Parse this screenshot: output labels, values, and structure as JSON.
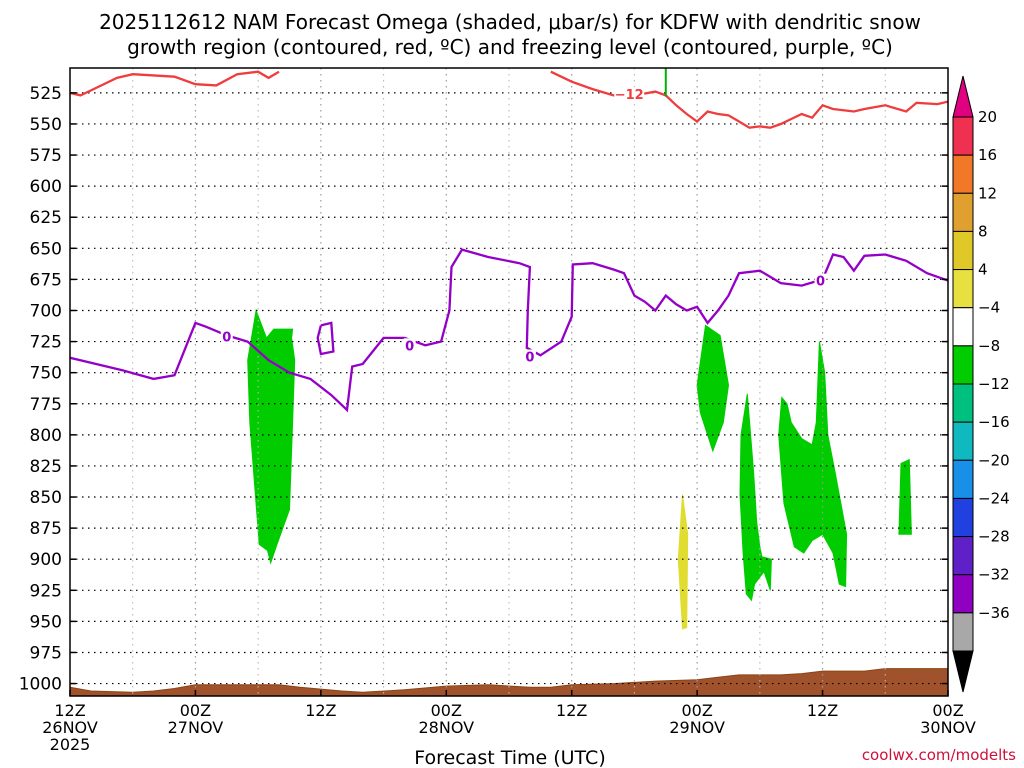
{
  "chart_data": {
    "type": "time-height cross section",
    "title_line1": "2025112612 NAM Forecast Omega (shaded, μbar/s) for KDFW with dendritic snow",
    "title_line2": "growth region (contoured, red, ºC) and freezing level (contoured, purple, ºC)",
    "xlabel": "Forecast Time (UTC)",
    "ylabel": "",
    "credit": "coolwx.com/modelts",
    "ylim": [
      1010,
      505
    ],
    "xlim": [
      0,
      84
    ],
    "y_ticks": [
      525,
      550,
      575,
      600,
      625,
      650,
      675,
      700,
      725,
      750,
      775,
      800,
      825,
      850,
      875,
      900,
      925,
      950,
      975,
      1000
    ],
    "x_ticks": [
      {
        "hour": 0,
        "line1": "12Z",
        "line2": "26NOV",
        "line3": "2025"
      },
      {
        "hour": 12,
        "line1": "00Z",
        "line2": "27NOV",
        "line3": ""
      },
      {
        "hour": 24,
        "line1": "12Z",
        "line2": "",
        "line3": ""
      },
      {
        "hour": 36,
        "line1": "00Z",
        "line2": "28NOV",
        "line3": ""
      },
      {
        "hour": 48,
        "line1": "12Z",
        "line2": "",
        "line3": ""
      },
      {
        "hour": 60,
        "line1": "00Z",
        "line2": "29NOV",
        "line3": ""
      },
      {
        "hour": 72,
        "line1": "12Z",
        "line2": "",
        "line3": ""
      },
      {
        "hour": 84,
        "line1": "00Z",
        "line2": "30NOV",
        "line3": ""
      }
    ],
    "grid": true,
    "colorbar": {
      "labels": [
        "20",
        "16",
        "12",
        "8",
        "4",
        "−4",
        "−8",
        "−12",
        "−16",
        "−20",
        "−24",
        "−28",
        "−32",
        "−36"
      ],
      "colors": [
        "#f03050",
        "#f07828",
        "#e0a030",
        "#e0c828",
        "#e8e040",
        "#ffffff",
        "#00cc00",
        "#00c080",
        "#10b8c0",
        "#1890e8",
        "#2040e0",
        "#6020c8",
        "#9000c0",
        "#a8a8a8"
      ],
      "top_arrow_color": "#e00080",
      "bottom_arrow_color": "#000000"
    },
    "contour_labels": {
      "dgz": "−12",
      "freezing": "0"
    },
    "freezing_level_0C": [
      [
        0,
        738
      ],
      [
        2,
        742
      ],
      [
        5,
        748
      ],
      [
        8,
        755
      ],
      [
        10,
        752
      ],
      [
        12,
        710
      ],
      [
        13,
        713
      ],
      [
        15,
        720
      ],
      [
        17,
        725
      ],
      [
        19,
        740
      ],
      [
        21,
        750
      ],
      [
        23,
        755
      ],
      [
        25,
        768
      ],
      [
        26.5,
        780
      ],
      [
        27,
        745
      ],
      [
        28,
        743
      ],
      [
        30,
        722
      ],
      [
        32,
        722
      ],
      [
        34,
        728
      ],
      [
        35.5,
        725
      ],
      [
        36.3,
        700
      ],
      [
        36.5,
        665
      ],
      [
        37.5,
        651
      ],
      [
        40,
        657
      ],
      [
        43,
        662
      ],
      [
        44,
        665
      ],
      [
        43.8,
        700
      ],
      [
        43.7,
        730
      ],
      [
        45,
        736
      ],
      [
        47,
        725
      ],
      [
        48,
        705
      ],
      [
        48.1,
        663
      ],
      [
        50,
        662
      ],
      [
        52,
        667
      ],
      [
        53,
        670
      ],
      [
        54,
        688
      ],
      [
        55,
        693
      ],
      [
        56,
        700
      ],
      [
        57,
        688
      ],
      [
        58,
        695
      ],
      [
        59,
        700
      ],
      [
        60,
        697
      ],
      [
        61,
        710
      ],
      [
        62,
        700
      ],
      [
        63,
        688
      ],
      [
        64,
        670
      ],
      [
        66,
        668
      ],
      [
        68,
        678
      ],
      [
        70,
        680
      ],
      [
        72,
        675
      ],
      [
        73,
        655
      ],
      [
        74,
        657
      ],
      [
        75,
        668
      ],
      [
        76,
        656
      ],
      [
        78,
        655
      ],
      [
        80,
        660
      ],
      [
        82,
        670
      ],
      [
        84,
        676
      ]
    ],
    "freezing_small_loop": [
      [
        24,
        712
      ],
      [
        25,
        710
      ],
      [
        25.2,
        733
      ],
      [
        24,
        735
      ],
      [
        23.7,
        722
      ],
      [
        24,
        712
      ]
    ],
    "dgz_minus12C": [
      [
        0,
        525
      ],
      [
        1,
        527
      ],
      [
        3,
        519
      ],
      [
        4.5,
        513
      ],
      [
        6,
        510
      ],
      [
        10,
        512
      ],
      [
        12,
        518
      ],
      [
        14,
        519
      ],
      [
        16,
        510
      ],
      [
        18,
        508
      ],
      [
        19,
        513
      ],
      [
        20,
        508
      ]
    ],
    "dgz_minus12C_right": [
      [
        46,
        508
      ],
      [
        48,
        516
      ],
      [
        50,
        522
      ],
      [
        52,
        527
      ],
      [
        54,
        527
      ],
      [
        56,
        524
      ],
      [
        57,
        527
      ],
      [
        58,
        535
      ],
      [
        59,
        542
      ],
      [
        60,
        548
      ],
      [
        61,
        540
      ],
      [
        62,
        542
      ],
      [
        63,
        543
      ],
      [
        64,
        548
      ],
      [
        65,
        553
      ],
      [
        66,
        552
      ],
      [
        67,
        553
      ],
      [
        68,
        550
      ],
      [
        69,
        546
      ],
      [
        70,
        542
      ],
      [
        71,
        545
      ],
      [
        72,
        535
      ],
      [
        73,
        538
      ],
      [
        75,
        540
      ],
      [
        76,
        538
      ],
      [
        78,
        535
      ],
      [
        80,
        540
      ],
      [
        81,
        533
      ],
      [
        83,
        534
      ],
      [
        84,
        532
      ]
    ],
    "omega_regions": [
      {
        "value_range": [
          -8,
          -4
        ],
        "polygon": [
          [
            17.8,
            700
          ],
          [
            17,
            740
          ],
          [
            17.2,
            790
          ],
          [
            18.1,
            888
          ],
          [
            18.9,
            893
          ],
          [
            19.2,
            903
          ],
          [
            19.8,
            888
          ],
          [
            21,
            860
          ],
          [
            21.3,
            790
          ],
          [
            21.5,
            740
          ],
          [
            21.2,
            722
          ],
          [
            21.3,
            715
          ],
          [
            19.5,
            715
          ],
          [
            18.8,
            722
          ]
        ]
      },
      {
        "value_range": [
          -8,
          -4
        ],
        "polygon": [
          [
            60.8,
            712
          ],
          [
            60,
            760
          ],
          [
            60.3,
            782
          ],
          [
            61.5,
            813
          ],
          [
            62.5,
            790
          ],
          [
            63,
            760
          ],
          [
            62.2,
            720
          ]
        ]
      },
      {
        "value_range": [
          -8,
          -4
        ],
        "polygon": [
          [
            64.8,
            767
          ],
          [
            64.2,
            800
          ],
          [
            64.1,
            848
          ],
          [
            64.4,
            895
          ],
          [
            64.7,
            928
          ],
          [
            65.2,
            933
          ],
          [
            65.5,
            920
          ],
          [
            66.4,
            910
          ],
          [
            67,
            925
          ],
          [
            67.1,
            900
          ],
          [
            66.2,
            898
          ],
          [
            66,
            890
          ],
          [
            65.7,
            870
          ],
          [
            65.4,
            830
          ]
        ]
      },
      {
        "value_range": [
          -8,
          -4
        ],
        "polygon": [
          [
            68.1,
            770
          ],
          [
            67.8,
            800
          ],
          [
            68.3,
            855
          ],
          [
            69.3,
            890
          ],
          [
            70.2,
            895
          ],
          [
            71,
            885
          ],
          [
            72,
            880
          ],
          [
            73,
            895
          ],
          [
            73.6,
            920
          ],
          [
            74.2,
            922
          ],
          [
            74.3,
            880
          ],
          [
            73.2,
            830
          ],
          [
            72.5,
            800
          ],
          [
            72.2,
            750
          ],
          [
            71.7,
            725
          ],
          [
            71.4,
            790
          ],
          [
            71,
            808
          ],
          [
            70,
            803
          ],
          [
            69,
            790
          ],
          [
            68.6,
            775
          ]
        ]
      },
      {
        "value_range": [
          -8,
          -4
        ],
        "polygon": [
          [
            79.5,
            823
          ],
          [
            79.3,
            880
          ],
          [
            80.5,
            880
          ],
          [
            80.3,
            820
          ]
        ]
      },
      {
        "value_range": [
          4,
          8
        ],
        "polygon": [
          [
            58.6,
            848
          ],
          [
            58.2,
            900
          ],
          [
            58.6,
            956
          ],
          [
            59,
            955
          ],
          [
            59.1,
            880
          ]
        ]
      }
    ],
    "terrain_top": [
      [
        0,
        1003
      ],
      [
        2,
        1006
      ],
      [
        6,
        1007
      ],
      [
        8,
        1006
      ],
      [
        10,
        1004
      ],
      [
        12,
        1001
      ],
      [
        16,
        1001
      ],
      [
        20,
        1001
      ],
      [
        22,
        1003
      ],
      [
        26,
        1006
      ],
      [
        28,
        1007
      ],
      [
        32,
        1005
      ],
      [
        36,
        1002
      ],
      [
        40,
        1001
      ],
      [
        44,
        1003
      ],
      [
        46,
        1003
      ],
      [
        48,
        1001
      ],
      [
        52,
        1000
      ],
      [
        56,
        998
      ],
      [
        60,
        997
      ],
      [
        62,
        995
      ],
      [
        64,
        993
      ],
      [
        68,
        993
      ],
      [
        70,
        992
      ],
      [
        72,
        990
      ],
      [
        76,
        990
      ],
      [
        78,
        988
      ],
      [
        84,
        988
      ]
    ]
  }
}
